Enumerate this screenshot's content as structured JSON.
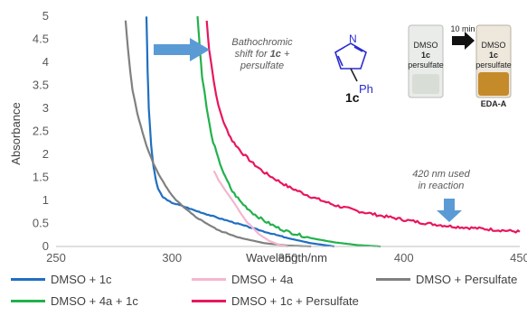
{
  "chart_data": {
    "type": "line",
    "xlabel": "Wavelength/nm",
    "ylabel": "Absorbance",
    "xlim": [
      250,
      450
    ],
    "ylim": [
      0,
      5
    ],
    "xticks": [
      "250",
      "300",
      "350",
      "400",
      "450"
    ],
    "yticks": [
      "0",
      "0.5",
      "1",
      "1.5",
      "2",
      "2.5",
      "3",
      "3.5",
      "4",
      "4.5",
      "5"
    ],
    "grid": false,
    "legend_position": "bottom",
    "series": [
      {
        "name": "DMSO + 1c",
        "color": "#1f6fc1",
        "x": [
          289,
          289.5,
          290,
          291,
          292,
          293,
          294,
          296,
          298,
          300,
          305,
          310,
          320,
          330,
          340,
          350,
          360,
          370
        ],
        "y": [
          5,
          3.8,
          3.0,
          2.2,
          1.75,
          1.45,
          1.25,
          1.08,
          1.0,
          0.95,
          0.87,
          0.78,
          0.62,
          0.47,
          0.32,
          0.18,
          0.07,
          0.0
        ]
      },
      {
        "name": "DMSO + 4a",
        "color": "#f4b6cf",
        "x": [
          318,
          319,
          320,
          322,
          324,
          326,
          328,
          330,
          332,
          335,
          338,
          342,
          346,
          350
        ],
        "y": [
          1.65,
          1.55,
          1.45,
          1.3,
          1.15,
          1.0,
          0.85,
          0.7,
          0.55,
          0.4,
          0.25,
          0.12,
          0.04,
          0.0
        ]
      },
      {
        "name": "DMSO + Persulfate",
        "color": "#808080",
        "x": [
          280,
          281,
          282,
          283,
          285,
          288,
          290,
          292,
          295,
          298,
          300,
          305,
          310,
          320,
          330,
          340,
          350,
          360
        ],
        "y": [
          4.9,
          4.3,
          3.8,
          3.4,
          2.9,
          2.35,
          2.05,
          1.8,
          1.5,
          1.25,
          1.1,
          0.85,
          0.65,
          0.35,
          0.18,
          0.07,
          0.02,
          0.0
        ]
      },
      {
        "name": "DMSO + 4a + 1c",
        "color": "#22b14c",
        "x": [
          311,
          311.5,
          312,
          313,
          315,
          317,
          320,
          323,
          326,
          330,
          335,
          340,
          345,
          350,
          360,
          370,
          380,
          390
        ],
        "y": [
          5,
          4.7,
          4.3,
          3.7,
          3.0,
          2.4,
          1.9,
          1.5,
          1.2,
          0.95,
          0.72,
          0.55,
          0.42,
          0.32,
          0.18,
          0.09,
          0.03,
          0.0
        ]
      },
      {
        "name": "DMSO + 1c + Persulfate",
        "color": "#e8175d",
        "x": [
          315,
          316,
          318,
          320,
          323,
          326,
          330,
          335,
          340,
          350,
          360,
          370,
          380,
          390,
          400,
          410,
          420,
          430,
          440,
          450
        ],
        "y": [
          4.9,
          4.3,
          3.6,
          3.05,
          2.6,
          2.3,
          2.05,
          1.8,
          1.6,
          1.3,
          1.08,
          0.9,
          0.77,
          0.67,
          0.58,
          0.5,
          0.44,
          0.4,
          0.36,
          0.32
        ]
      }
    ]
  },
  "annotations": {
    "shift_line1": "Bathochromic",
    "shift_line2_pre": "shift for ",
    "shift_line2_bold": "1c",
    "shift_line2_post": " +",
    "shift_line3": "persulfate",
    "nm_line1": "420 nm used",
    "nm_line2": "in reaction",
    "arrow_color": "#5b9bd5"
  },
  "inset": {
    "n_label": "N",
    "ph_label": "Ph",
    "compound_label": "1c",
    "vial_left_lines": [
      "DMSO",
      "1c",
      "persulfate"
    ],
    "time_label": "10 min",
    "vial_right_lines": [
      "DMSO",
      "1c",
      "persulfate"
    ],
    "eda_label": "EDA-A"
  },
  "legend": [
    {
      "label": "DMSO + 1c",
      "color": "#1f6fc1"
    },
    {
      "label": "DMSO + 4a",
      "color": "#f4b6cf"
    },
    {
      "label": "DMSO + Persulfate",
      "color": "#808080"
    },
    {
      "label": "DMSO + 4a + 1c",
      "color": "#22b14c"
    },
    {
      "label": "DMSO + 1c + Persulfate",
      "color": "#e8175d"
    }
  ]
}
